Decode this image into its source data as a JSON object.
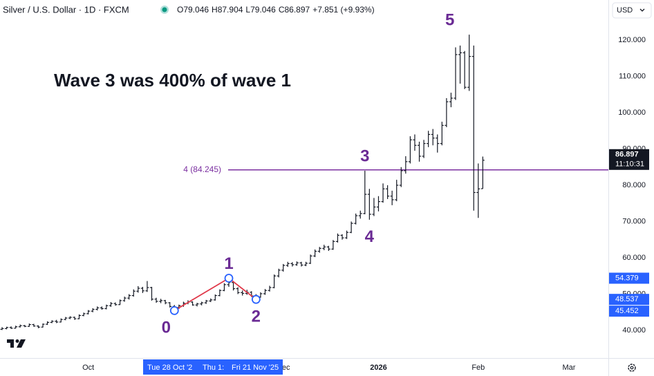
{
  "chart_data": {
    "type": "ohlc",
    "title": "Silver / U.S. Dollar · 1D · FXCM",
    "readout": [
      "O79.046",
      "H87.904",
      "L79.046",
      "C86.897",
      "+7.851 (+9.93%)"
    ],
    "currency": "USD",
    "annotation": "Wave 3 was 400% of wave 1",
    "color": "#131722",
    "ylim": [
      32.38,
      131.05
    ],
    "yticks": [
      {
        "value": 40,
        "label": "40.000"
      },
      {
        "value": 50,
        "label": "50.000"
      },
      {
        "value": 60,
        "label": "60.000"
      },
      {
        "value": 70,
        "label": "70.000"
      },
      {
        "value": 80,
        "label": "80.000"
      },
      {
        "value": 90,
        "label": "90.000"
      },
      {
        "value": 100,
        "label": "100.000"
      },
      {
        "value": 110,
        "label": "110.000"
      },
      {
        "value": 120,
        "label": "120.000"
      }
    ],
    "grid": false,
    "xticks": [
      {
        "value": 19,
        "label": "Oct"
      },
      {
        "value": 62,
        "label": "Dec"
      },
      {
        "value": 83,
        "label": "2026"
      },
      {
        "value": 105,
        "label": "Feb"
      },
      {
        "value": 125,
        "label": "Mar"
      }
    ],
    "date_labels": [
      "Tue 28 Oct '2",
      "Thu 1:",
      "Fri 21 Nov '25"
    ],
    "hline": {
      "value": 84.245,
      "label": "4 (84.245)",
      "color": "#7b2fa0"
    },
    "wave_color": "#6a2a94",
    "wave_labels": [
      {
        "label": "0",
        "bar": 38,
        "pos": "below"
      },
      {
        "label": "1",
        "bar": 50,
        "pos": "above"
      },
      {
        "label": "2",
        "bar": 56,
        "pos": "below"
      },
      {
        "label": "3",
        "bar": 80,
        "pos": "above"
      },
      {
        "label": "4",
        "bar": 81,
        "pos": "below"
      },
      {
        "label": "5",
        "bar": 103,
        "pos": "above"
      }
    ],
    "pivots": [
      {
        "bar": 38,
        "field": 2
      },
      {
        "bar": 50,
        "field": 1
      },
      {
        "bar": 56,
        "field": 2
      }
    ],
    "pivot_line_color": "#e0394a",
    "pivot_marker_color": "#2962ff",
    "price_tags": [
      {
        "value": 54.379,
        "label": "54.379"
      },
      {
        "value": 48.537,
        "label": "48.537"
      },
      {
        "value": 45.452,
        "label": "45.452"
      }
    ],
    "tag_color": "#2962ff",
    "last_price": {
      "value": 86.897,
      "label": "86.897",
      "countdown": "11:10:31"
    },
    "bars": [
      [
        40.3,
        40.9,
        40.1,
        40.5
      ],
      [
        40.5,
        41.0,
        40.3,
        40.8
      ],
      [
        40.8,
        41.1,
        40.4,
        40.6
      ],
      [
        40.6,
        41.3,
        40.5,
        41.0
      ],
      [
        41.0,
        41.6,
        40.8,
        41.3
      ],
      [
        41.3,
        41.5,
        40.9,
        41.1
      ],
      [
        41.1,
        41.9,
        41.0,
        41.6
      ],
      [
        41.6,
        41.8,
        41.0,
        41.2
      ],
      [
        41.2,
        41.4,
        40.6,
        40.9
      ],
      [
        40.9,
        41.9,
        40.8,
        41.7
      ],
      [
        41.7,
        42.5,
        41.5,
        42.2
      ],
      [
        42.2,
        42.8,
        42.0,
        42.5
      ],
      [
        42.5,
        42.9,
        42.0,
        42.3
      ],
      [
        42.3,
        43.3,
        42.2,
        43.0
      ],
      [
        43.0,
        43.7,
        42.8,
        43.4
      ],
      [
        43.4,
        43.9,
        43.1,
        43.6
      ],
      [
        43.6,
        43.8,
        42.9,
        43.2
      ],
      [
        43.2,
        44.4,
        43.1,
        44.1
      ],
      [
        44.1,
        44.9,
        43.9,
        44.6
      ],
      [
        44.6,
        45.6,
        44.4,
        45.3
      ],
      [
        45.3,
        46.1,
        45.0,
        45.8
      ],
      [
        45.8,
        46.6,
        45.5,
        46.2
      ],
      [
        46.2,
        46.6,
        45.7,
        46.0
      ],
      [
        46.0,
        47.1,
        45.8,
        46.8
      ],
      [
        46.8,
        47.8,
        46.5,
        47.4
      ],
      [
        47.4,
        47.7,
        46.8,
        47.1
      ],
      [
        47.1,
        48.5,
        47.0,
        48.2
      ],
      [
        48.2,
        49.3,
        47.9,
        48.9
      ],
      [
        48.9,
        50.0,
        48.5,
        49.6
      ],
      [
        49.6,
        51.3,
        49.3,
        50.8
      ],
      [
        50.8,
        52.2,
        50.4,
        51.6
      ],
      [
        51.6,
        52.0,
        50.3,
        50.9
      ],
      [
        50.9,
        53.6,
        50.6,
        51.8
      ],
      [
        51.8,
        52.0,
        48.2,
        48.6
      ],
      [
        48.6,
        49.0,
        47.6,
        48.0
      ],
      [
        48.0,
        48.7,
        47.5,
        48.2
      ],
      [
        48.2,
        48.4,
        47.2,
        47.6
      ],
      [
        47.6,
        47.8,
        46.3,
        46.6
      ],
      [
        46.6,
        47.0,
        45.452,
        46.3
      ],
      [
        46.3,
        47.1,
        45.9,
        46.8
      ],
      [
        46.8,
        47.9,
        46.5,
        47.5
      ],
      [
        47.5,
        48.3,
        47.2,
        47.8
      ],
      [
        47.8,
        48.0,
        46.8,
        47.0
      ],
      [
        47.0,
        47.6,
        46.6,
        47.3
      ],
      [
        47.3,
        47.9,
        46.9,
        47.6
      ],
      [
        47.6,
        48.4,
        47.3,
        48.1
      ],
      [
        48.1,
        48.8,
        47.8,
        48.4
      ],
      [
        48.4,
        49.9,
        48.2,
        49.6
      ],
      [
        49.6,
        51.3,
        49.4,
        51.0
      ],
      [
        51.0,
        53.0,
        50.8,
        52.6
      ],
      [
        52.6,
        54.379,
        52.0,
        53.2
      ],
      [
        53.2,
        53.5,
        51.0,
        51.5
      ],
      [
        51.5,
        51.9,
        50.0,
        50.4
      ],
      [
        50.4,
        51.0,
        49.6,
        50.2
      ],
      [
        50.2,
        51.2,
        49.8,
        50.5
      ],
      [
        50.5,
        50.8,
        49.2,
        49.5
      ],
      [
        49.5,
        50.0,
        48.537,
        49.2
      ],
      [
        49.2,
        50.5,
        49.0,
        50.1
      ],
      [
        50.1,
        51.4,
        49.8,
        51.0
      ],
      [
        51.0,
        52.3,
        50.7,
        51.8
      ],
      [
        51.8,
        55.4,
        51.6,
        55.0
      ],
      [
        55.0,
        57.0,
        54.6,
        56.6
      ],
      [
        56.6,
        58.3,
        56.2,
        57.9
      ],
      [
        57.9,
        58.9,
        57.5,
        58.4
      ],
      [
        58.4,
        58.8,
        57.6,
        58.1
      ],
      [
        58.1,
        59.0,
        57.8,
        58.6
      ],
      [
        58.6,
        58.9,
        57.6,
        58.0
      ],
      [
        58.0,
        58.9,
        57.7,
        58.5
      ],
      [
        58.5,
        60.9,
        58.3,
        60.5
      ],
      [
        60.5,
        62.3,
        60.2,
        61.8
      ],
      [
        61.8,
        63.0,
        61.4,
        62.6
      ],
      [
        62.6,
        63.6,
        62.1,
        63.0
      ],
      [
        63.0,
        63.3,
        61.9,
        62.4
      ],
      [
        62.4,
        64.9,
        62.2,
        64.5
      ],
      [
        64.5,
        66.7,
        64.2,
        66.2
      ],
      [
        66.2,
        66.5,
        65.0,
        65.5
      ],
      [
        65.5,
        67.5,
        65.2,
        67.0
      ],
      [
        67.0,
        70.0,
        66.8,
        69.5
      ],
      [
        69.5,
        72.2,
        69.2,
        71.6
      ],
      [
        71.6,
        73.0,
        70.8,
        72.2
      ],
      [
        72.2,
        84.0,
        72.0,
        77.5
      ],
      [
        77.5,
        79.0,
        70.5,
        72.0
      ],
      [
        72.0,
        76.5,
        71.5,
        74.0
      ],
      [
        74.0,
        77.0,
        72.8,
        75.5
      ],
      [
        75.5,
        80.5,
        75.2,
        79.0
      ],
      [
        79.0,
        80.0,
        76.2,
        77.0
      ],
      [
        77.0,
        78.5,
        74.5,
        76.0
      ],
      [
        76.0,
        81.5,
        75.6,
        80.0
      ],
      [
        80.0,
        85.0,
        79.5,
        84.0
      ],
      [
        84.0,
        88.0,
        83.2,
        86.5
      ],
      [
        86.5,
        93.5,
        86.0,
        92.5
      ],
      [
        92.5,
        94.0,
        89.5,
        91.0
      ],
      [
        91.0,
        92.0,
        86.5,
        88.0
      ],
      [
        88.0,
        92.5,
        87.5,
        91.5
      ],
      [
        91.5,
        95.0,
        90.5,
        94.0
      ],
      [
        94.0,
        95.5,
        91.0,
        93.0
      ],
      [
        93.0,
        94.0,
        89.0,
        91.5
      ],
      [
        91.5,
        97.5,
        91.0,
        96.5
      ],
      [
        96.5,
        104.0,
        96.0,
        103.0
      ],
      [
        103.0,
        105.5,
        101.5,
        104.0
      ],
      [
        104.0,
        118.0,
        103.5,
        116.0
      ],
      [
        116.0,
        118.5,
        108.0,
        116.5
      ],
      [
        116.5,
        117.0,
        106.5,
        107.0
      ],
      [
        107.0,
        121.5,
        106.0,
        115.5
      ],
      [
        115.5,
        118.5,
        73.0,
        78.0
      ],
      [
        78.0,
        86.0,
        71.0,
        79.0
      ],
      [
        79.046,
        87.904,
        79.046,
        86.897
      ]
    ]
  }
}
